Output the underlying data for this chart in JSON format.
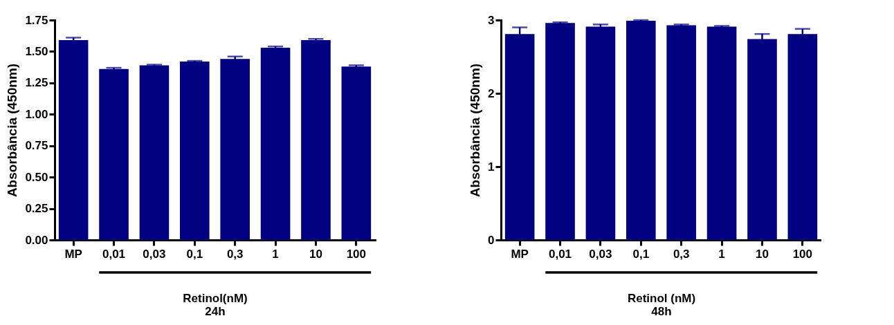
{
  "chart_data": [
    {
      "type": "bar",
      "categories": [
        "MP",
        "0,01",
        "0,03",
        "0,1",
        "0,3",
        "1",
        "10",
        "100"
      ],
      "values": [
        1.59,
        1.36,
        1.39,
        1.42,
        1.44,
        1.53,
        1.59,
        1.38
      ],
      "errors": [
        0.02,
        0.01,
        0.005,
        0.005,
        0.02,
        0.01,
        0.01,
        0.01
      ],
      "color": "#000080",
      "ylabel": "Absorbância (450nm)",
      "xlabel": "Retinol(nM)",
      "annotations": [
        "24h"
      ],
      "ylim": [
        0,
        1.75
      ],
      "yticks": [
        {
          "value": 0,
          "label": "0.00"
        },
        {
          "value": 0.25,
          "label": "0.25"
        },
        {
          "value": 0.5,
          "label": "0.50"
        },
        {
          "value": 0.75,
          "label": "0.75"
        },
        {
          "value": 1,
          "label": "1.00"
        },
        {
          "value": 1.25,
          "label": "1.25"
        },
        {
          "value": 1.5,
          "label": "1.50"
        },
        {
          "value": 1.75,
          "label": "1.75"
        }
      ],
      "grid": false
    },
    {
      "type": "bar",
      "categories": [
        "MP",
        "0,01",
        "0,03",
        "0,1",
        "0,3",
        "1",
        "10",
        "100"
      ],
      "values": [
        2.81,
        2.96,
        2.91,
        2.99,
        2.93,
        2.91,
        2.74,
        2.81
      ],
      "errors": [
        0.09,
        0.01,
        0.03,
        0.01,
        0.01,
        0.01,
        0.07,
        0.07
      ],
      "color": "#000080",
      "ylabel": "Absorbância (450nm)",
      "xlabel": "Retinol (nM)",
      "annotations": [
        "48h"
      ],
      "ylim": [
        0,
        3
      ],
      "yticks": [
        0,
        1,
        2,
        3
      ],
      "grid": false
    }
  ]
}
